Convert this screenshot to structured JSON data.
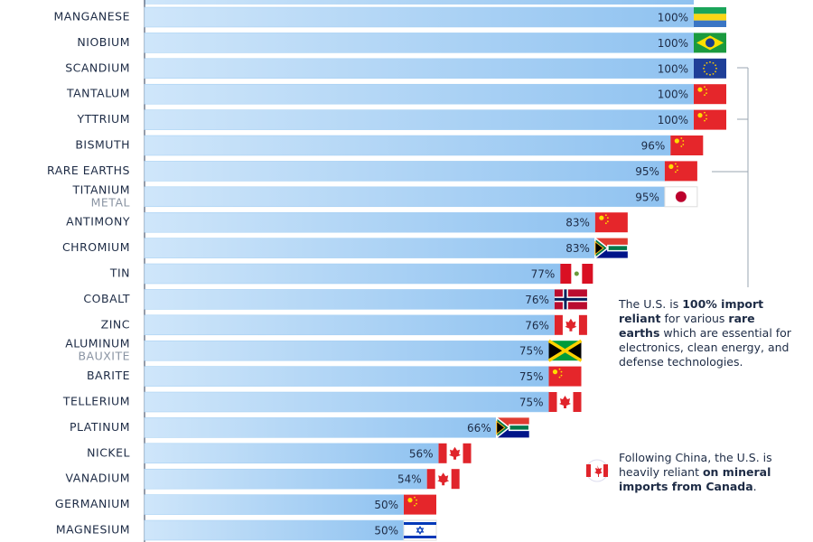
{
  "chart_data": {
    "type": "bar",
    "orientation": "horizontal",
    "categories": [
      "MANGANESE",
      "NIOBIUM",
      "SCANDIUM",
      "TANTALUM",
      "YTTRIUM",
      "BISMUTH",
      "RARE EARTHS",
      "TITANIUM",
      "ANTIMONY",
      "CHROMIUM",
      "TIN",
      "COBALT",
      "ZINC",
      "ALUMINUM",
      "BARITE",
      "TELLERIUM",
      "PLATINUM",
      "NICKEL",
      "VANADIUM",
      "GERMANIUM",
      "MAGNESIUM"
    ],
    "category_sublabels": [
      null,
      null,
      null,
      null,
      null,
      null,
      null,
      "METAL",
      null,
      null,
      null,
      null,
      null,
      "BAUXITE",
      null,
      null,
      null,
      null,
      null,
      null,
      null
    ],
    "values": [
      100,
      100,
      100,
      100,
      100,
      96,
      95,
      95,
      83,
      83,
      77,
      76,
      76,
      75,
      75,
      75,
      66,
      56,
      54,
      50,
      50
    ],
    "value_labels": [
      "100%",
      "100%",
      "100%",
      "100%",
      "100%",
      "96%",
      "95%",
      "95%",
      "83%",
      "83%",
      "77%",
      "76%",
      "76%",
      "75%",
      "75%",
      "75%",
      "66%",
      "56%",
      "54%",
      "50%",
      "50%"
    ],
    "xlim": [
      0,
      100
    ],
    "color": "#9fcdf3",
    "annotations": [
      [
        {
          "text": "The U.S. is ",
          "bold": false
        },
        {
          "text": "100% import reliant",
          "bold": true
        },
        {
          "text": " for various ",
          "bold": false
        },
        {
          "text": "rare earths",
          "bold": true
        },
        {
          "text": " which are essential for electronics, clean energy, and defense technologies.",
          "bold": false
        }
      ],
      [
        {
          "text": "Following China, the U.S. is heavily reliant ",
          "bold": false
        },
        {
          "text": "on mineral imports from Canada",
          "bold": true
        },
        {
          "text": ".",
          "bold": false
        }
      ]
    ]
  }
}
